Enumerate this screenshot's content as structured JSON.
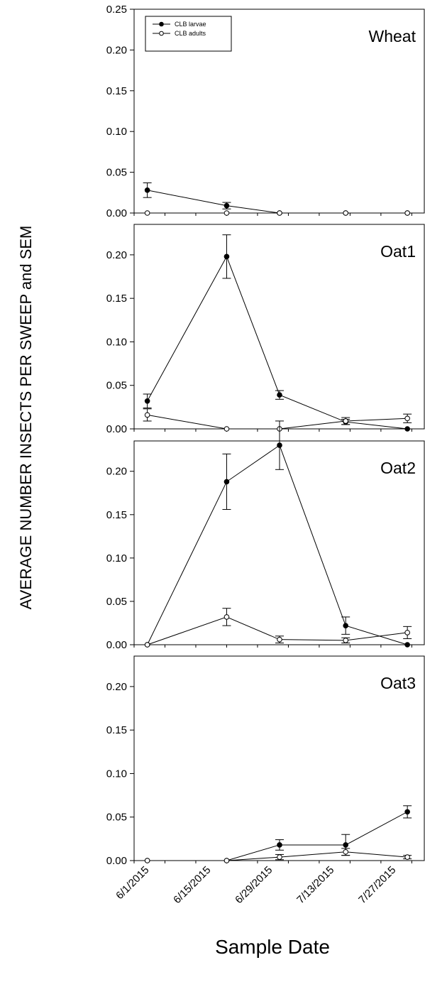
{
  "chart_data": {
    "type": "line",
    "ylabel": "AVERAGE NUMBER INSECTS PER SWEEP and SEM",
    "xlabel": "Sample Date",
    "x_tick_labels": [
      "6/1/2015",
      "6/15/2015",
      "6/29/2015",
      "7/13/2015",
      "7/27/2015"
    ],
    "legend": {
      "placement": "top-left",
      "entries": [
        {
          "label": "CLB larvae",
          "marker": "filled-circle"
        },
        {
          "label": "CLB adults",
          "marker": "open-circle"
        }
      ]
    },
    "panels": [
      {
        "title": "Wheat",
        "ylim": [
          0,
          0.25
        ],
        "y_tick_labels": [
          "0.00",
          "0.05",
          "0.10",
          "0.15",
          "0.20",
          "0.25"
        ],
        "x": [
          "2015-06-01",
          "2015-06-19",
          "2015-07-01",
          "2015-07-16",
          "2015-07-30"
        ],
        "series": [
          {
            "marker": "filled",
            "values": [
              0.028,
              0.009,
              0.0,
              0.0,
              0.0
            ],
            "errors": [
              0.009,
              0.004,
              0.0,
              0.0,
              0.0
            ]
          },
          {
            "marker": "open",
            "values": [
              0.0,
              0.0,
              0.0,
              0.0,
              0.0
            ],
            "errors": [
              0.0,
              0.0,
              0.0,
              0.0,
              0.0
            ]
          }
        ]
      },
      {
        "title": "Oat1",
        "ylim": [
          0,
          0.235
        ],
        "y_tick_labels": [
          "0.00",
          "0.05",
          "0.10",
          "0.15",
          "0.20"
        ],
        "x": [
          "2015-06-01",
          "2015-06-19",
          "2015-07-01",
          "2015-07-16",
          "2015-07-30"
        ],
        "series": [
          {
            "marker": "filled",
            "values": [
              0.032,
              0.198,
              0.039,
              0.008,
              0.0
            ],
            "errors": [
              0.008,
              0.025,
              0.005,
              0.003,
              0.0
            ]
          },
          {
            "marker": "open",
            "values": [
              0.016,
              0.0,
              0.0,
              0.009,
              0.012
            ],
            "errors": [
              0.007,
              0.0,
              0.0,
              0.004,
              0.005
            ]
          }
        ]
      },
      {
        "title": "Oat2",
        "ylim": [
          0,
          0.235
        ],
        "y_tick_labels": [
          "0.00",
          "0.05",
          "0.10",
          "0.15",
          "0.20"
        ],
        "x": [
          "2015-06-01",
          "2015-06-19",
          "2015-07-01",
          "2015-07-16",
          "2015-07-30"
        ],
        "series": [
          {
            "marker": "filled",
            "values": [
              0.0,
              0.188,
              0.23,
              0.022,
              0.0
            ],
            "errors": [
              0.0,
              0.032,
              0.028,
              0.01,
              0.0
            ]
          },
          {
            "marker": "open",
            "values": [
              0.0,
              0.032,
              0.006,
              0.005,
              0.014
            ],
            "errors": [
              0.0,
              0.01,
              0.004,
              0.003,
              0.007
            ]
          }
        ]
      },
      {
        "title": "Oat3",
        "ylim": [
          0,
          0.235
        ],
        "y_tick_labels": [
          "0.00",
          "0.05",
          "0.10",
          "0.15",
          "0.20"
        ],
        "x": [
          "2015-06-01",
          "2015-06-19",
          "2015-07-01",
          "2015-07-16",
          "2015-07-30"
        ],
        "series": [
          {
            "marker": "filled",
            "values": [
              0.0,
              0.0,
              0.018,
              0.018,
              0.056
            ],
            "errors": [
              0.0,
              0.0,
              0.006,
              0.012,
              0.007
            ]
          },
          {
            "marker": "open",
            "values": [
              0.0,
              0.0,
              0.004,
              0.01,
              0.004
            ],
            "errors": [
              0.0,
              0.0,
              0.003,
              0.004,
              0.002
            ]
          }
        ]
      }
    ]
  }
}
